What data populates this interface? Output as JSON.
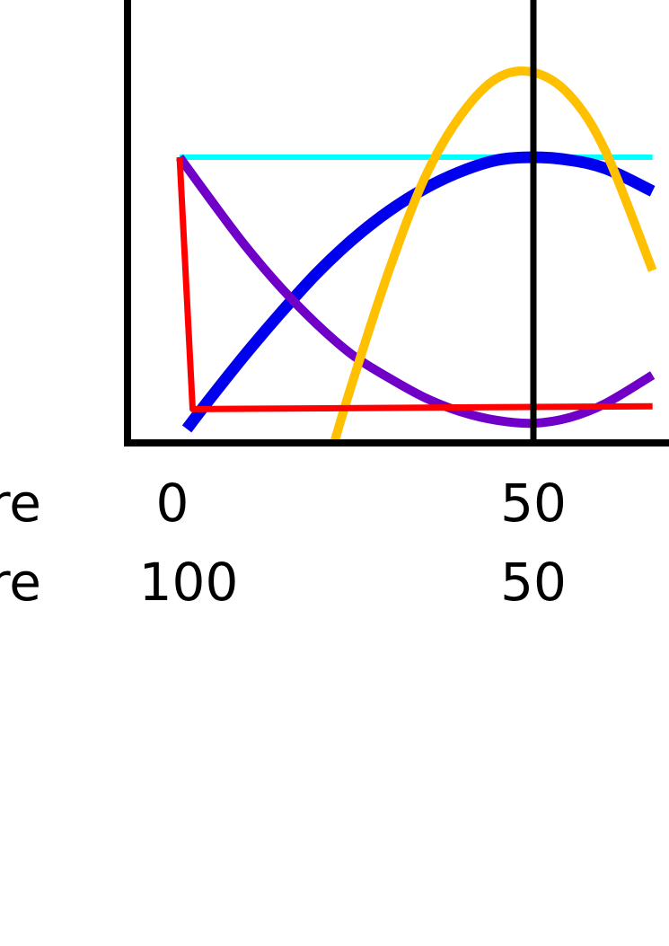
{
  "chart_data": {
    "type": "line",
    "x_axis_rows": [
      {
        "label": "re",
        "ticks": [
          "0",
          "50"
        ]
      },
      {
        "label": "re",
        "ticks": [
          "100",
          "50"
        ]
      }
    ],
    "x_tick_values": [
      0,
      50
    ],
    "xlim": [
      -1,
      67
    ],
    "ylim": [
      0,
      1.2
    ],
    "reference_lines": {
      "vertical_x": 50
    },
    "series": [
      {
        "color": "#00FFFF",
        "x": [
          1,
          66.5
        ],
        "y": [
          1,
          1
        ]
      },
      {
        "color": "#0000EE",
        "x": [
          2,
          5,
          10,
          15,
          20,
          25,
          30,
          35,
          40,
          45,
          50,
          55,
          60,
          66.5
        ],
        "y": [
          0.04,
          0.14,
          0.3,
          0.45,
          0.59,
          0.71,
          0.81,
          0.89,
          0.95,
          0.99,
          1.0,
          0.99,
          0.96,
          0.88
        ]
      },
      {
        "color": "#7000C8",
        "x": [
          1,
          5,
          10,
          15,
          20,
          25,
          30,
          35,
          40,
          45,
          50,
          55,
          60,
          66.5
        ],
        "y": [
          1.0,
          0.86,
          0.69,
          0.54,
          0.41,
          0.3,
          0.22,
          0.15,
          0.1,
          0.07,
          0.06,
          0.08,
          0.13,
          0.23
        ]
      },
      {
        "color": "#FFC000",
        "x": [
          22.5,
          25,
          30,
          35,
          40,
          45,
          50,
          55,
          60,
          66.5
        ],
        "y": [
          0.0,
          0.21,
          0.6,
          0.93,
          1.15,
          1.28,
          1.3,
          1.22,
          1.02,
          0.6
        ]
      },
      {
        "color": "#FF0000",
        "x": [
          1,
          2.8,
          66.5
        ],
        "y": [
          1.0,
          0.11,
          0.12
        ]
      }
    ]
  }
}
